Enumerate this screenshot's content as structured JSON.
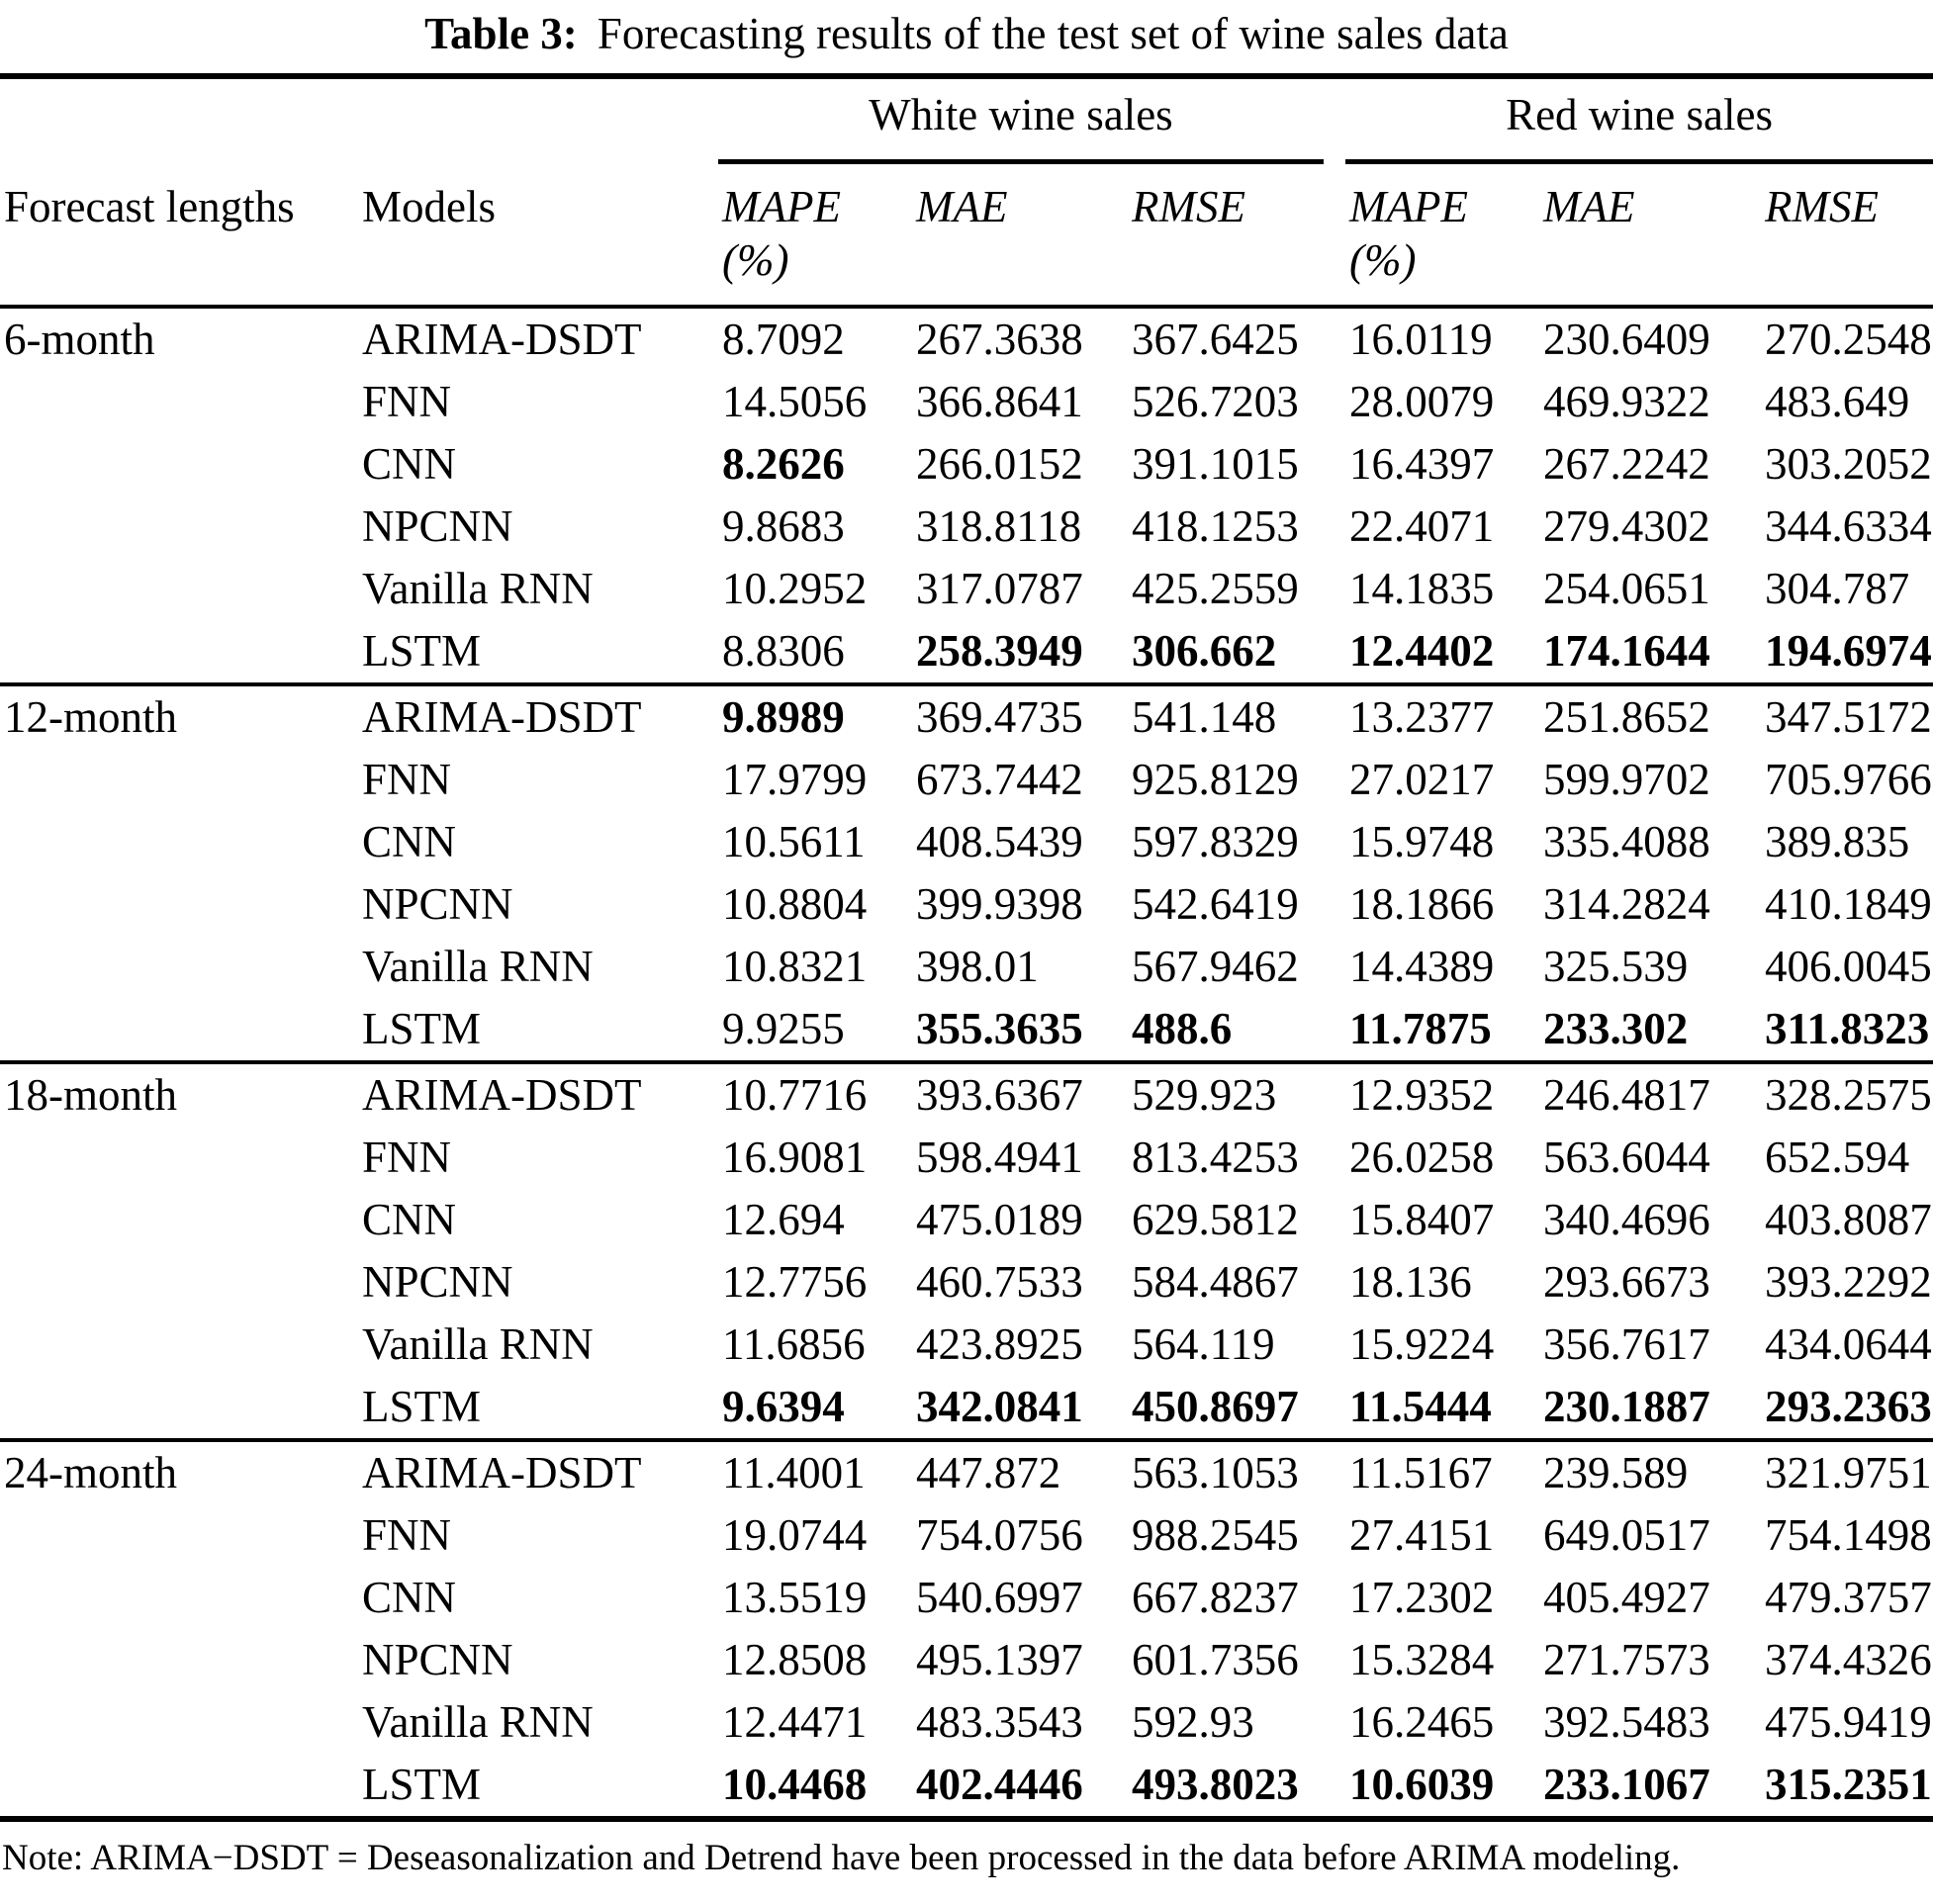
{
  "title": {
    "label": "Table 3:",
    "text": "Forecasting results of the test set of wine sales data"
  },
  "note": "Note: ARIMA−DSDT = Deseasonalization and Detrend have been processed in the data before ARIMA modeling.",
  "table": {
    "group_headers": [
      {
        "label": "White wine sales"
      },
      {
        "label": "Red wine sales"
      }
    ],
    "col_headers": {
      "forecast": "Forecast lengths",
      "models": "Models",
      "metrics": [
        {
          "name": "MAPE",
          "unit": "(%)"
        },
        {
          "name": "MAE",
          "unit": ""
        },
        {
          "name": "RMSE",
          "unit": ""
        },
        {
          "name": "MAPE",
          "unit": "(%)"
        },
        {
          "name": "MAE",
          "unit": ""
        },
        {
          "name": "RMSE",
          "unit": ""
        }
      ]
    },
    "groups": [
      {
        "length": "6-month",
        "rows": [
          {
            "model": "ARIMA-DSDT",
            "values": [
              "8.7092",
              "267.3638",
              "367.6425",
              "16.0119",
              "230.6409",
              "270.2548"
            ],
            "bold": [
              false,
              false,
              false,
              false,
              false,
              false
            ]
          },
          {
            "model": "FNN",
            "values": [
              "14.5056",
              "366.8641",
              "526.7203",
              "28.0079",
              "469.9322",
              "483.649"
            ],
            "bold": [
              false,
              false,
              false,
              false,
              false,
              false
            ]
          },
          {
            "model": "CNN",
            "values": [
              "8.2626",
              "266.0152",
              "391.1015",
              "16.4397",
              "267.2242",
              "303.2052"
            ],
            "bold": [
              true,
              false,
              false,
              false,
              false,
              false
            ]
          },
          {
            "model": "NPCNN",
            "values": [
              "9.8683",
              "318.8118",
              "418.1253",
              "22.4071",
              "279.4302",
              "344.6334"
            ],
            "bold": [
              false,
              false,
              false,
              false,
              false,
              false
            ]
          },
          {
            "model": "Vanilla RNN",
            "values": [
              "10.2952",
              "317.0787",
              "425.2559",
              "14.1835",
              "254.0651",
              "304.787"
            ],
            "bold": [
              false,
              false,
              false,
              false,
              false,
              false
            ]
          },
          {
            "model": "LSTM",
            "values": [
              "8.8306",
              "258.3949",
              "306.662",
              "12.4402",
              "174.1644",
              "194.6974"
            ],
            "bold": [
              false,
              true,
              true,
              true,
              true,
              true
            ]
          }
        ]
      },
      {
        "length": "12-month",
        "rows": [
          {
            "model": "ARIMA-DSDT",
            "values": [
              "9.8989",
              "369.4735",
              "541.148",
              "13.2377",
              "251.8652",
              "347.5172"
            ],
            "bold": [
              true,
              false,
              false,
              false,
              false,
              false
            ]
          },
          {
            "model": "FNN",
            "values": [
              "17.9799",
              "673.7442",
              "925.8129",
              "27.0217",
              "599.9702",
              "705.9766"
            ],
            "bold": [
              false,
              false,
              false,
              false,
              false,
              false
            ]
          },
          {
            "model": "CNN",
            "values": [
              "10.5611",
              "408.5439",
              "597.8329",
              "15.9748",
              "335.4088",
              "389.835"
            ],
            "bold": [
              false,
              false,
              false,
              false,
              false,
              false
            ]
          },
          {
            "model": "NPCNN",
            "values": [
              "10.8804",
              "399.9398",
              "542.6419",
              "18.1866",
              "314.2824",
              "410.1849"
            ],
            "bold": [
              false,
              false,
              false,
              false,
              false,
              false
            ]
          },
          {
            "model": "Vanilla RNN",
            "values": [
              "10.8321",
              "398.01",
              "567.9462",
              "14.4389",
              "325.539",
              "406.0045"
            ],
            "bold": [
              false,
              false,
              false,
              false,
              false,
              false
            ]
          },
          {
            "model": "LSTM",
            "values": [
              "9.9255",
              "355.3635",
              "488.6",
              "11.7875",
              "233.302",
              "311.8323"
            ],
            "bold": [
              false,
              true,
              true,
              true,
              true,
              true
            ]
          }
        ]
      },
      {
        "length": "18-month",
        "rows": [
          {
            "model": "ARIMA-DSDT",
            "values": [
              "10.7716",
              "393.6367",
              "529.923",
              "12.9352",
              "246.4817",
              "328.2575"
            ],
            "bold": [
              false,
              false,
              false,
              false,
              false,
              false
            ]
          },
          {
            "model": "FNN",
            "values": [
              "16.9081",
              "598.4941",
              "813.4253",
              "26.0258",
              "563.6044",
              "652.594"
            ],
            "bold": [
              false,
              false,
              false,
              false,
              false,
              false
            ]
          },
          {
            "model": "CNN",
            "values": [
              "12.694",
              "475.0189",
              "629.5812",
              "15.8407",
              "340.4696",
              "403.8087"
            ],
            "bold": [
              false,
              false,
              false,
              false,
              false,
              false
            ]
          },
          {
            "model": "NPCNN",
            "values": [
              "12.7756",
              "460.7533",
              "584.4867",
              "18.136",
              "293.6673",
              "393.2292"
            ],
            "bold": [
              false,
              false,
              false,
              false,
              false,
              false
            ]
          },
          {
            "model": "Vanilla RNN",
            "values": [
              "11.6856",
              "423.8925",
              "564.119",
              "15.9224",
              "356.7617",
              "434.0644"
            ],
            "bold": [
              false,
              false,
              false,
              false,
              false,
              false
            ]
          },
          {
            "model": "LSTM",
            "values": [
              "9.6394",
              "342.0841",
              "450.8697",
              "11.5444",
              "230.1887",
              "293.2363"
            ],
            "bold": [
              true,
              true,
              true,
              true,
              true,
              true
            ]
          }
        ]
      },
      {
        "length": "24-month",
        "rows": [
          {
            "model": "ARIMA-DSDT",
            "values": [
              "11.4001",
              "447.872",
              "563.1053",
              "11.5167",
              "239.589",
              "321.9751"
            ],
            "bold": [
              false,
              false,
              false,
              false,
              false,
              false
            ]
          },
          {
            "model": "FNN",
            "values": [
              "19.0744",
              "754.0756",
              "988.2545",
              "27.4151",
              "649.0517",
              "754.1498"
            ],
            "bold": [
              false,
              false,
              false,
              false,
              false,
              false
            ]
          },
          {
            "model": "CNN",
            "values": [
              "13.5519",
              "540.6997",
              "667.8237",
              "17.2302",
              "405.4927",
              "479.3757"
            ],
            "bold": [
              false,
              false,
              false,
              false,
              false,
              false
            ]
          },
          {
            "model": "NPCNN",
            "values": [
              "12.8508",
              "495.1397",
              "601.7356",
              "15.3284",
              "271.7573",
              "374.4326"
            ],
            "bold": [
              false,
              false,
              false,
              false,
              false,
              false
            ]
          },
          {
            "model": "Vanilla RNN",
            "values": [
              "12.4471",
              "483.3543",
              "592.93",
              "16.2465",
              "392.5483",
              "475.9419"
            ],
            "bold": [
              false,
              false,
              false,
              false,
              false,
              false
            ]
          },
          {
            "model": "LSTM",
            "values": [
              "10.4468",
              "402.4446",
              "493.8023",
              "10.6039",
              "233.1067",
              "315.2351"
            ],
            "bold": [
              true,
              true,
              true,
              true,
              true,
              true
            ]
          }
        ]
      }
    ]
  }
}
